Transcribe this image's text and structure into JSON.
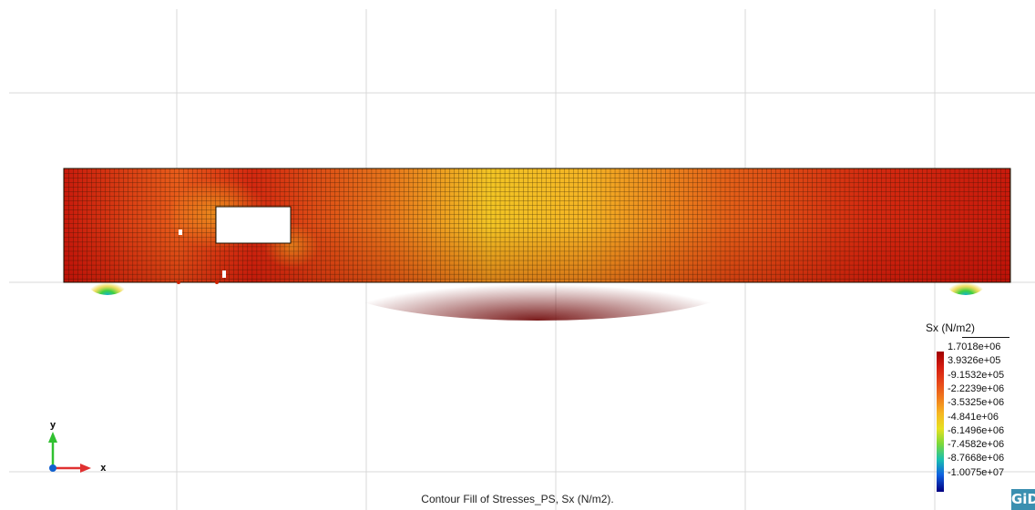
{
  "caption": "Contour Fill of Stresses_PS, Sx (N/m2).",
  "legend": {
    "title": "Sx (N/m2)",
    "labels": [
      "1.7018e+06",
      "3.9326e+05",
      "-9.1532e+05",
      "-2.2239e+06",
      "-3.5325e+06",
      "-4.841e+06",
      "-6.1496e+06",
      "-7.4582e+06",
      "-8.7668e+06",
      "-1.0075e+07"
    ],
    "colors": [
      "#a00000",
      "#d41c10",
      "#e6461a",
      "#f07a1c",
      "#f6b622",
      "#e6e020",
      "#7ad83a",
      "#1ac0b0",
      "#1060e0",
      "#000080"
    ]
  },
  "axes": {
    "x_label": "x",
    "y_label": "y"
  },
  "logo": "GiD"
}
